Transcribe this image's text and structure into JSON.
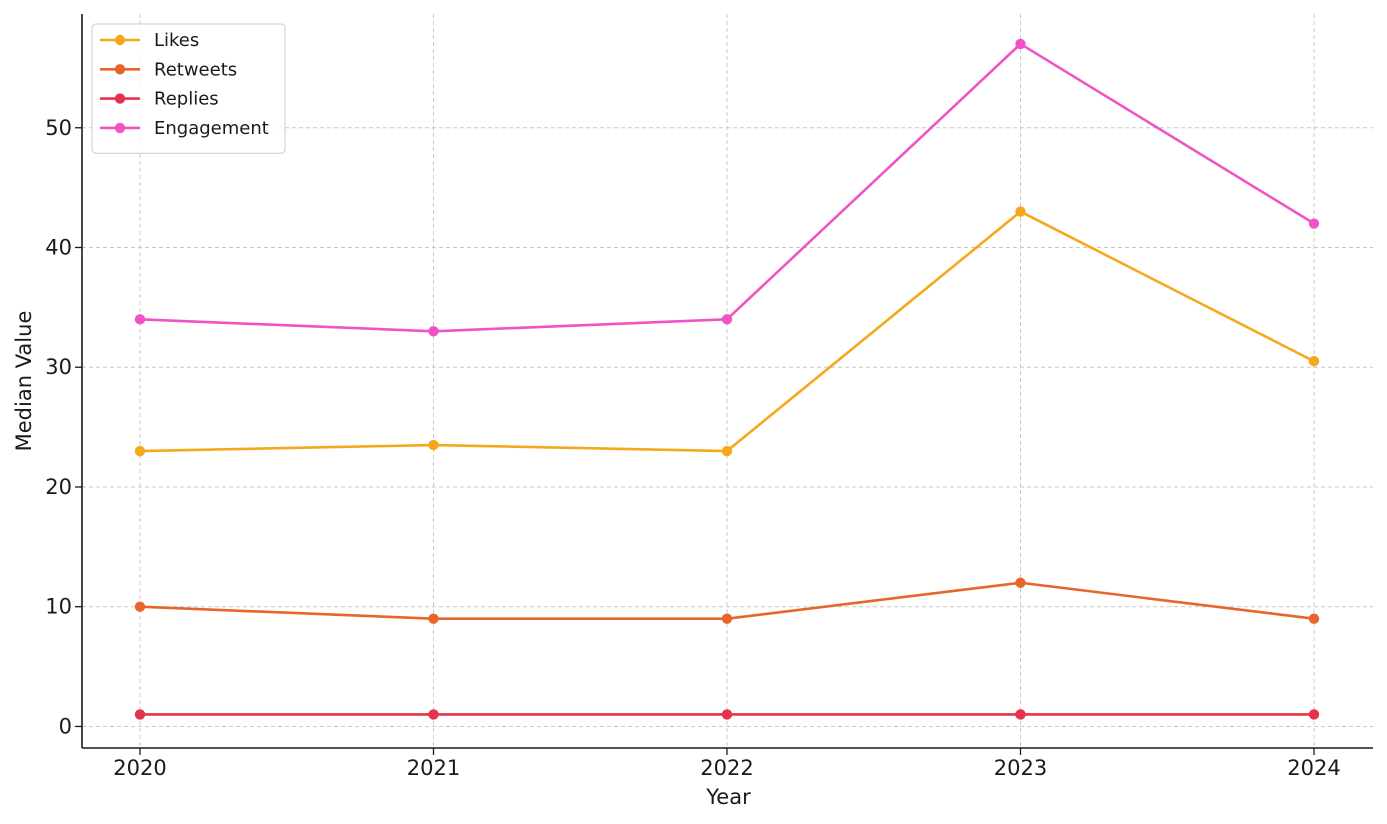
{
  "chart_data": {
    "type": "line",
    "title": "",
    "xlabel": "Year",
    "ylabel": "Median Value",
    "categories": [
      "2020",
      "2021",
      "2022",
      "2023",
      "2024"
    ],
    "y_ticks": [
      0,
      10,
      20,
      30,
      40,
      50
    ],
    "ylim": [
      -1.8,
      59.5
    ],
    "grid": true,
    "legend_position": "top-left",
    "series": [
      {
        "name": "Likes",
        "color": "#f5a81c",
        "values": [
          23,
          23.5,
          23,
          43,
          30.5
        ]
      },
      {
        "name": "Retweets",
        "color": "#e8652a",
        "values": [
          10,
          9,
          9,
          12,
          9
        ]
      },
      {
        "name": "Replies",
        "color": "#e5334d",
        "values": [
          1,
          1,
          1,
          1,
          1
        ]
      },
      {
        "name": "Engagement",
        "color": "#f054c4",
        "values": [
          34,
          33,
          34,
          57,
          42
        ]
      }
    ]
  }
}
